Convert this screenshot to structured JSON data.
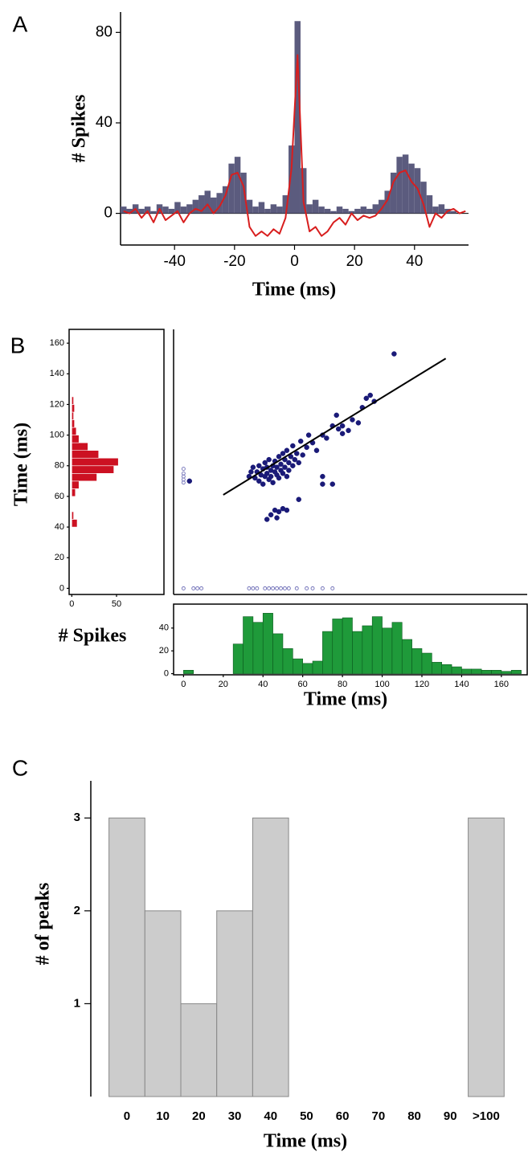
{
  "chart_data": [
    {
      "type": "histogram",
      "panel_label": "A",
      "ylabel": "# Spikes",
      "xlabel": "Time (ms)",
      "xlim": [
        -58,
        58
      ],
      "ylim": [
        -14,
        89
      ],
      "xticks": [
        -40,
        -20,
        0,
        20,
        40
      ],
      "yticks": [
        0,
        40,
        80
      ],
      "bins": [
        -58,
        -56,
        -54,
        -52,
        -50,
        -48,
        -46,
        -44,
        -42,
        -40,
        -38,
        -36,
        -34,
        -32,
        -30,
        -28,
        -26,
        -24,
        -22,
        -20,
        -18,
        -16,
        -14,
        -12,
        -10,
        -8,
        -6,
        -4,
        -2,
        0,
        2,
        4,
        6,
        8,
        10,
        12,
        14,
        16,
        18,
        20,
        22,
        24,
        26,
        28,
        30,
        32,
        34,
        36,
        38,
        40,
        42,
        44,
        46,
        48,
        50,
        52,
        54,
        56,
        58
      ],
      "series": [
        {
          "color": "#5b5b7e",
          "values": [
            3,
            2,
            4,
            2,
            3,
            1,
            4,
            3,
            2,
            5,
            3,
            4,
            6,
            8,
            10,
            7,
            9,
            12,
            22,
            25,
            18,
            6,
            3,
            5,
            2,
            4,
            3,
            8,
            30,
            85,
            20,
            4,
            6,
            3,
            2,
            1,
            3,
            2,
            1,
            2,
            3,
            2,
            4,
            6,
            10,
            18,
            25,
            26,
            22,
            20,
            14,
            8,
            3,
            4,
            2,
            1,
            0,
            0
          ]
        },
        {
          "type": "line",
          "color": "#d81e1e",
          "x": [
            -57,
            -55,
            -53,
            -51,
            -49,
            -47,
            -45,
            -43,
            -41,
            -39,
            -37,
            -35,
            -33,
            -31,
            -29,
            -27,
            -25,
            -23,
            -21,
            -19,
            -17,
            -15,
            -13,
            -11,
            -9,
            -7,
            -5,
            -3,
            -1,
            1,
            3,
            5,
            7,
            9,
            11,
            13,
            15,
            17,
            19,
            21,
            23,
            25,
            27,
            29,
            31,
            33,
            35,
            37,
            39,
            41,
            43,
            45,
            47,
            49,
            51,
            53,
            55,
            57
          ],
          "values": [
            1,
            0,
            2,
            -2,
            1,
            -4,
            2,
            -3,
            -1,
            1,
            -4,
            0,
            2,
            1,
            4,
            0,
            3,
            8,
            17,
            18,
            12,
            -6,
            -10,
            -8,
            -10,
            -7,
            -9,
            -2,
            20,
            70,
            5,
            -8,
            -6,
            -10,
            -8,
            -4,
            -2,
            -5,
            0,
            -3,
            -1,
            -2,
            -1,
            2,
            6,
            14,
            18,
            19,
            14,
            11,
            4,
            -6,
            0,
            -2,
            1,
            2,
            0,
            1
          ]
        }
      ]
    },
    {
      "type": "histogram",
      "orientation": "horizontal",
      "panel_label": "B",
      "ylabel": "Time (ms)",
      "xlim": [
        -3,
        103
      ],
      "ylim": [
        -4,
        169
      ],
      "xticks": [
        0,
        50
      ],
      "yticks": [
        0,
        20,
        40,
        60,
        80,
        100,
        120,
        140,
        160
      ],
      "bins": [
        40,
        45,
        50,
        55,
        60,
        65,
        70,
        75,
        80,
        85,
        90,
        95,
        100,
        105,
        110,
        115,
        120,
        125
      ],
      "series": [
        {
          "color": "#cc1122",
          "values": [
            6,
            2,
            0,
            0,
            4,
            8,
            28,
            47,
            52,
            30,
            18,
            8,
            5,
            3,
            2,
            3,
            2
          ]
        }
      ]
    },
    {
      "type": "scatter",
      "xlim": [
        -5,
        173
      ],
      "ylim": [
        -4,
        169
      ],
      "series": [
        {
          "color": "#1a1a78",
          "marker": "filled",
          "x": [
            36,
            37,
            38,
            38,
            39,
            40,
            40,
            41,
            41,
            42,
            42,
            43,
            43,
            44,
            44,
            45,
            45,
            46,
            46,
            47,
            47,
            48,
            48,
            49,
            49,
            50,
            50,
            51,
            51,
            52,
            52,
            53,
            53,
            54,
            55,
            55,
            56,
            57,
            58,
            59,
            60,
            62,
            63,
            65,
            67,
            70,
            72,
            75,
            78,
            80,
            80,
            83,
            85,
            88,
            77,
            92,
            94,
            96,
            90,
            106,
            58,
            70,
            70,
            75,
            44,
            46,
            48,
            50,
            52,
            42,
            47,
            34,
            35,
            33,
            3
          ],
          "y": [
            72,
            76,
            70,
            80,
            74,
            78,
            68,
            82,
            73,
            75,
            79,
            71,
            84,
            77,
            73,
            80,
            69,
            76,
            83,
            74,
            79,
            86,
            72,
            77,
            81,
            75,
            88,
            79,
            84,
            73,
            90,
            82,
            77,
            86,
            80,
            93,
            84,
            88,
            82,
            96,
            87,
            92,
            100,
            95,
            90,
            100,
            98,
            106,
            104,
            101,
            106,
            103,
            110,
            108,
            113,
            124,
            126,
            122,
            118,
            153,
            58,
            73,
            68,
            68,
            48,
            51,
            50,
            52,
            51,
            45,
            46,
            76,
            79,
            73,
            70
          ]
        },
        {
          "color": "#7070b8",
          "marker": "open",
          "x": [
            0,
            5,
            7,
            9,
            33,
            35,
            37,
            41,
            43,
            45,
            47,
            49,
            51,
            53,
            57,
            62,
            65,
            70,
            75,
            0,
            0,
            0,
            0,
            0
          ],
          "y": [
            0,
            0,
            0,
            0,
            0,
            0,
            0,
            0,
            0,
            0,
            0,
            0,
            0,
            0,
            0,
            0,
            0,
            0,
            0,
            69,
            71,
            73,
            75,
            78
          ]
        },
        {
          "type": "line",
          "color": "#000000",
          "x": [
            20,
            132
          ],
          "y": [
            61,
            150
          ]
        }
      ]
    },
    {
      "type": "histogram",
      "ylabel": "# Spikes",
      "xlabel": "Time (ms)",
      "xlim": [
        -5,
        173
      ],
      "ylim": [
        -1,
        61
      ],
      "xticks": [
        0,
        20,
        40,
        60,
        80,
        100,
        120,
        140,
        160
      ],
      "yticks": [
        0,
        20,
        40
      ],
      "bins": [
        0,
        5,
        10,
        15,
        20,
        25,
        30,
        35,
        40,
        45,
        50,
        55,
        60,
        65,
        70,
        75,
        80,
        85,
        90,
        95,
        100,
        105,
        110,
        115,
        120,
        125,
        130,
        135,
        140,
        145,
        150,
        155,
        160,
        165,
        170
      ],
      "series": [
        {
          "color": "#1f9a3a",
          "values": [
            3,
            0,
            0,
            0,
            0,
            26,
            50,
            45,
            53,
            35,
            22,
            13,
            9,
            11,
            37,
            48,
            49,
            37,
            42,
            50,
            40,
            45,
            30,
            22,
            18,
            10,
            8,
            6,
            4,
            4,
            3,
            3,
            2,
            3
          ]
        }
      ]
    },
    {
      "type": "bar",
      "panel_label": "C",
      "ylabel": "# of peaks",
      "xlabel": "Time (ms)",
      "categories": [
        "0",
        "10",
        "20",
        "30",
        "40",
        "50",
        "60",
        "70",
        "80",
        "90",
        ">100"
      ],
      "values": [
        3,
        2,
        1,
        2,
        3,
        0,
        0,
        0,
        0,
        0,
        3
      ],
      "color": "#cccccc",
      "edgecolor": "#888888",
      "ylim": [
        0,
        3.4
      ],
      "yticks": [
        1,
        2,
        3
      ]
    }
  ]
}
